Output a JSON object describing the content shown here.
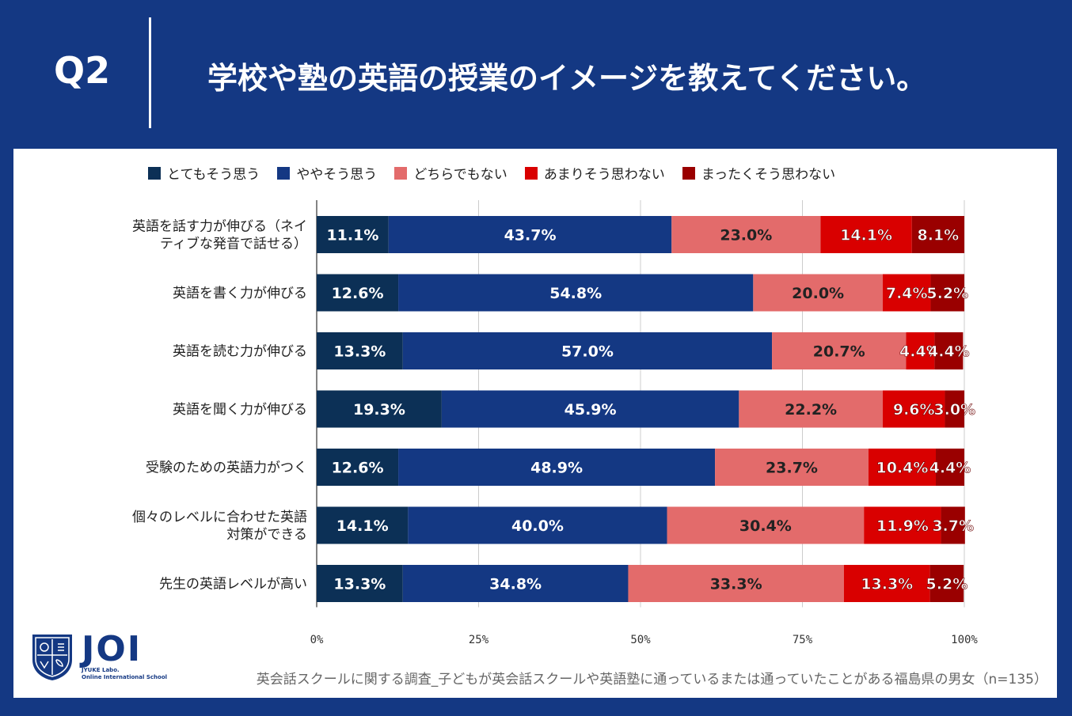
{
  "header": {
    "q_label": "Q2",
    "title": "学校や塾の英語の授業のイメージを教えてください。"
  },
  "colors": {
    "background": "#143883",
    "series": [
      "#0c3056",
      "#143883",
      "#e36b6b",
      "#d90000",
      "#9a0000"
    ]
  },
  "chart_data": {
    "type": "bar",
    "orientation": "horizontal",
    "stacked": true,
    "percent": true,
    "categories": [
      "英語を話す力が伸びる（ネイティブな発音で話せる）",
      "英語を書く力が伸びる",
      "英語を読む力が伸びる",
      "英語を聞く力が伸びる",
      "受験のための英語力がつく",
      "個々のレベルに合わせた英語対策ができる",
      "先生の英語レベルが高い"
    ],
    "category_lines": [
      [
        "英語を話す力が伸びる（ネイ",
        "ティブな発音で話せる）"
      ],
      [
        "英語を書く力が伸びる"
      ],
      [
        "英語を読む力が伸びる"
      ],
      [
        "英語を聞く力が伸びる"
      ],
      [
        "受験のための英語力がつく"
      ],
      [
        "個々のレベルに合わせた英語",
        "対策ができる"
      ],
      [
        "先生の英語レベルが高い"
      ]
    ],
    "series": [
      {
        "name": "とてもそう思う",
        "values": [
          11.1,
          12.6,
          13.3,
          19.3,
          12.6,
          14.1,
          13.3
        ]
      },
      {
        "name": "ややそう思う",
        "values": [
          43.7,
          54.8,
          57.0,
          45.9,
          48.9,
          40.0,
          34.8
        ]
      },
      {
        "name": "どちらでもない",
        "values": [
          23.0,
          20.0,
          20.7,
          22.2,
          23.7,
          30.4,
          33.3
        ]
      },
      {
        "name": "あまりそう思わない",
        "values": [
          14.1,
          7.4,
          4.4,
          9.6,
          10.4,
          11.9,
          13.3
        ]
      },
      {
        "name": "まったくそう思わない",
        "values": [
          8.1,
          5.2,
          4.4,
          3.0,
          4.4,
          3.7,
          5.2
        ]
      }
    ],
    "xlim": [
      0,
      100
    ],
    "xticks": [
      "0%",
      "25%",
      "50%",
      "75%",
      "100%"
    ],
    "grid": true,
    "legend_position": "top"
  },
  "logo": {
    "main": "JOI",
    "sub1": "JYUKE Labo.",
    "sub2": "Online International School"
  },
  "footnote": "英会話スクールに関する調査_子どもが英会話スクールや英語塾に通っているまたは通っていたことがある福島県の男女（n=135）"
}
